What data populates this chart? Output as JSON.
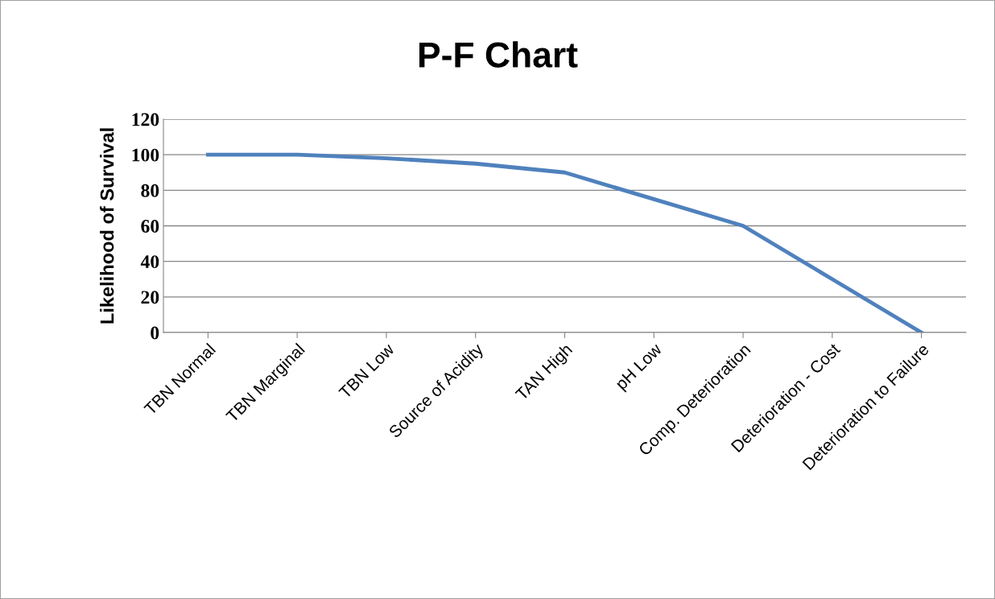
{
  "chart_data": {
    "type": "line",
    "title": "P-F Chart",
    "ylabel": "Likelihood of Survival",
    "categories": [
      "TBN Normal",
      "TBN Marginal",
      "TBN Low",
      "Source of Acidity",
      "TAN High",
      "pH Low",
      "Comp. Deterioration",
      "Deterioration - Cost",
      "Deterioration to Failure"
    ],
    "series": [
      {
        "color": "#4f81bd",
        "values": [
          100,
          100,
          98,
          95,
          90,
          75,
          60,
          30,
          0
        ]
      }
    ],
    "ylim": [
      0,
      120
    ],
    "yticks": [
      0,
      20,
      40,
      60,
      80,
      100,
      120
    ],
    "grid": "y",
    "legend": false,
    "marker": "none",
    "line_style": "solid"
  }
}
